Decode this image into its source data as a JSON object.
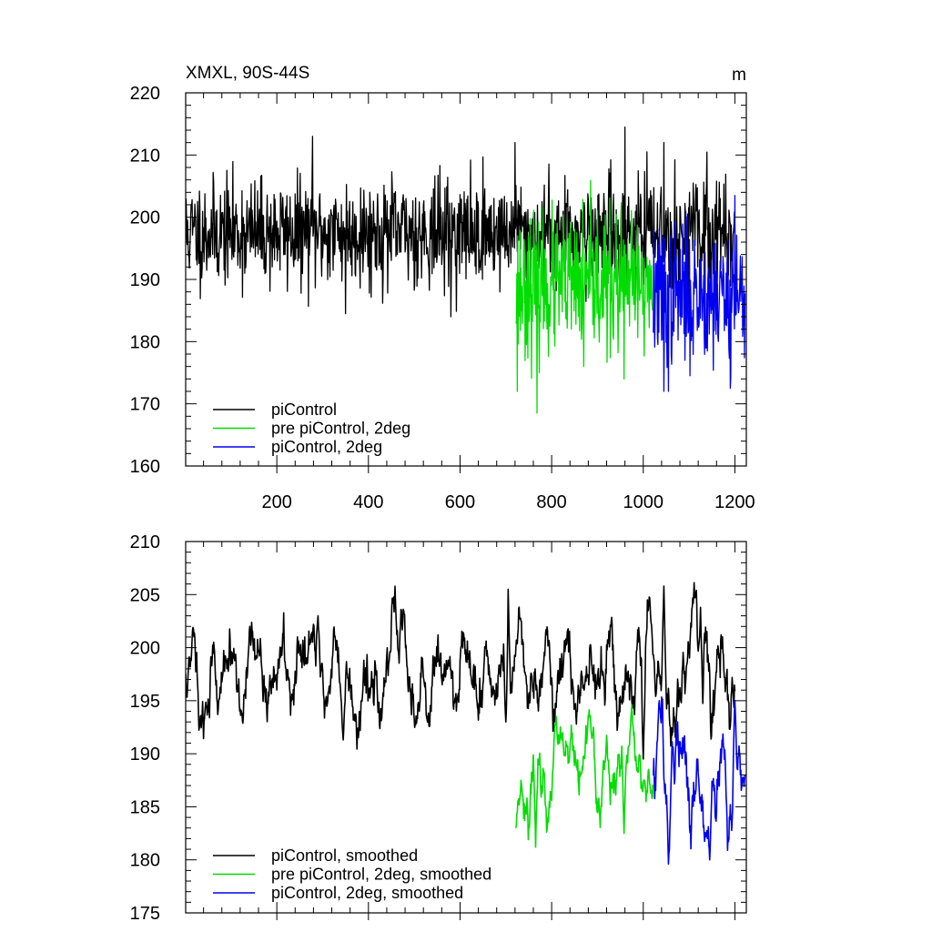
{
  "chart_data": [
    {
      "type": "line",
      "title": "XMXL, 90S-44S",
      "units": "m",
      "xlim": [
        1,
        1225
      ],
      "ylim": [
        160,
        220
      ],
      "yticks": [
        160,
        170,
        180,
        190,
        200,
        210,
        220
      ],
      "xticks": [
        200,
        400,
        600,
        800,
        1000,
        1200
      ],
      "legend_position": "bottom-left",
      "series": [
        {
          "name": "piControl",
          "color": "#000000",
          "start": 1,
          "end": 1200,
          "mean": 197.5,
          "sd": 4.2,
          "seed": 11,
          "anchors": [
            [
              100,
              197
            ],
            [
              278,
              213
            ],
            [
              350,
              184.5
            ],
            [
              580,
              184
            ],
            [
              720,
              212
            ],
            [
              960,
              214.5
            ],
            [
              1045,
              212
            ]
          ]
        },
        {
          "name": "pre piControl, 2deg",
          "color": "#00dd00",
          "start": 722,
          "end": 1021,
          "mean": 189,
          "sd": 5.5,
          "seed": 23,
          "anchors": [
            [
              725,
              172
            ],
            [
              768,
              168.5
            ],
            [
              870,
              176
            ],
            [
              958,
              174
            ],
            [
              900,
              201
            ]
          ]
        },
        {
          "name": "piControl, 2deg",
          "color": "#0000ee",
          "start": 1022,
          "end": 1222,
          "mean": 187.5,
          "sd": 5.5,
          "seed": 37,
          "anchors": [
            [
              1045,
              172
            ],
            [
              1055,
              172
            ],
            [
              1190,
              172.5
            ],
            [
              1200,
              203.5
            ]
          ]
        }
      ]
    },
    {
      "type": "line",
      "title": "",
      "xlim": [
        1,
        1225
      ],
      "ylim": [
        175,
        210
      ],
      "yticks": [
        175,
        180,
        185,
        190,
        195,
        200,
        205,
        210
      ],
      "legend_position": "bottom-left",
      "series": [
        {
          "name": "piControl, smoothed",
          "color": "#000000",
          "start": 1,
          "end": 1200,
          "mean": 197.5,
          "sd": 2.7,
          "seed": 11,
          "anchors": [
            [
              705,
              205.5
            ],
            [
              1045,
              205.8
            ],
            [
              290,
              203
            ],
            [
              345,
              191.3
            ],
            [
              700,
              193
            ],
            [
              1000,
              189.5
            ],
            [
              1125,
              203.8
            ]
          ]
        },
        {
          "name": "pre piControl, 2deg, smoothed",
          "color": "#00dd00",
          "start": 722,
          "end": 1021,
          "mean": 188.5,
          "sd": 2.5,
          "seed": 23,
          "anchors": [
            [
              722,
              183
            ],
            [
              765,
              181.2
            ],
            [
              810,
              193.5
            ],
            [
              958,
              182.5
            ],
            [
              975,
              194.6
            ]
          ]
        },
        {
          "name": "piControl, 2deg, smoothed",
          "color": "#0000ee",
          "start": 1022,
          "end": 1222,
          "mean": 187.5,
          "sd": 3.0,
          "seed": 37,
          "anchors": [
            [
              1035,
              195
            ],
            [
              1055,
              179.6
            ],
            [
              1145,
              180
            ],
            [
              1200,
              195
            ],
            [
              1222,
              188
            ]
          ]
        }
      ]
    }
  ]
}
